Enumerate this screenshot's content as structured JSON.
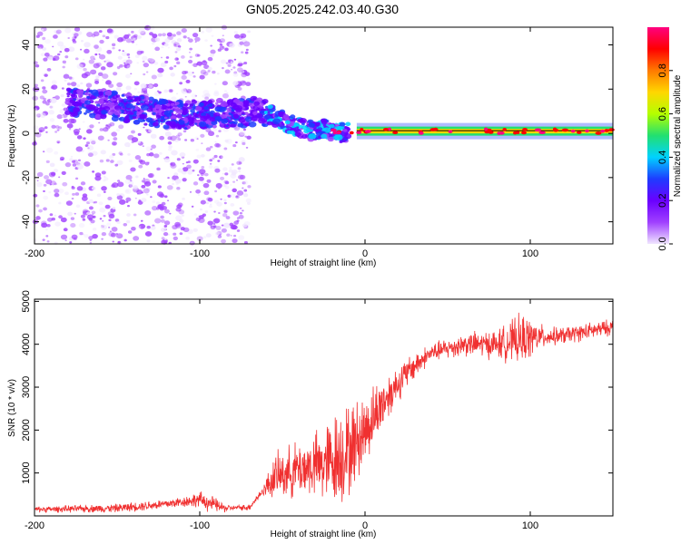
{
  "figure": {
    "title": "GN05.2025.242.03.40.G30"
  },
  "chart_data": [
    {
      "type": "heatmap",
      "xlabel": "Height of straight line (km)",
      "ylabel": "Frequency (Hz)",
      "xlim": [
        -200,
        150
      ],
      "ylim": [
        -50,
        48
      ],
      "x_ticks": [
        -200,
        -100,
        0,
        100
      ],
      "y_ticks": [
        -40,
        -20,
        0,
        20,
        40
      ],
      "colorbar": {
        "label": "Normalized spectral amplitude",
        "range": [
          0,
          1
        ],
        "ticks": [
          0.0,
          0.2,
          0.4,
          0.6,
          0.8
        ],
        "colormap": [
          "#f0e6ff",
          "#a040ff",
          "#6a00ff",
          "#1e3cff",
          "#00d2ff",
          "#22e070",
          "#b4ff00",
          "#ffd700",
          "#ff7a00",
          "#ff0000",
          "#ff0080"
        ]
      },
      "ridge_centers": [
        {
          "x": -175,
          "freq": 14
        },
        {
          "x": -155,
          "freq": 13
        },
        {
          "x": -140,
          "freq": 11
        },
        {
          "x": -125,
          "freq": 9
        },
        {
          "x": -110,
          "freq": 8
        },
        {
          "x": -95,
          "freq": 9
        },
        {
          "x": -80,
          "freq": 9
        },
        {
          "x": -65,
          "freq": 10
        },
        {
          "x": -55,
          "freq": 8
        },
        {
          "x": -45,
          "freq": 4
        },
        {
          "x": -35,
          "freq": 1
        },
        {
          "x": -25,
          "freq": 2
        },
        {
          "x": -15,
          "freq": 0
        },
        {
          "x": 0,
          "freq": 1
        },
        {
          "x": 20,
          "freq": 1
        },
        {
          "x": 60,
          "freq": 1
        },
        {
          "x": 90,
          "freq": 1
        },
        {
          "x": 120,
          "freq": 1
        },
        {
          "x": 150,
          "freq": 1
        }
      ]
    },
    {
      "type": "line",
      "xlabel": "Height of straight line (km)",
      "ylabel": "SNR (10 * v/v)",
      "xlim": [
        -200,
        150
      ],
      "ylim": [
        0,
        5050
      ],
      "x_ticks": [
        -200,
        -100,
        0,
        100
      ],
      "y_ticks": [
        1000,
        2000,
        3000,
        4000,
        5000
      ],
      "series_color": "#f03030",
      "trend": [
        {
          "x": -200,
          "y": 150
        },
        {
          "x": -150,
          "y": 180
        },
        {
          "x": -120,
          "y": 280
        },
        {
          "x": -100,
          "y": 380
        },
        {
          "x": -85,
          "y": 180
        },
        {
          "x": -70,
          "y": 200
        },
        {
          "x": -55,
          "y": 900
        },
        {
          "x": -40,
          "y": 1100
        },
        {
          "x": -25,
          "y": 1200
        },
        {
          "x": -10,
          "y": 1500
        },
        {
          "x": 0,
          "y": 2000
        },
        {
          "x": 10,
          "y": 2600
        },
        {
          "x": 20,
          "y": 3100
        },
        {
          "x": 30,
          "y": 3500
        },
        {
          "x": 40,
          "y": 3800
        },
        {
          "x": 60,
          "y": 4000
        },
        {
          "x": 80,
          "y": 4000
        },
        {
          "x": 100,
          "y": 4150
        },
        {
          "x": 120,
          "y": 4200
        },
        {
          "x": 150,
          "y": 4400
        }
      ],
      "noise_amplitude": [
        {
          "x": -200,
          "a": 80
        },
        {
          "x": -110,
          "a": 150
        },
        {
          "x": -95,
          "a": 250
        },
        {
          "x": -80,
          "a": 60
        },
        {
          "x": -62,
          "a": 120
        },
        {
          "x": -55,
          "a": 600
        },
        {
          "x": -30,
          "a": 900
        },
        {
          "x": -15,
          "a": 1400
        },
        {
          "x": 0,
          "a": 1000
        },
        {
          "x": 20,
          "a": 500
        },
        {
          "x": 40,
          "a": 250
        },
        {
          "x": 80,
          "a": 400
        },
        {
          "x": 95,
          "a": 700
        },
        {
          "x": 110,
          "a": 250
        },
        {
          "x": 150,
          "a": 220
        }
      ]
    }
  ]
}
